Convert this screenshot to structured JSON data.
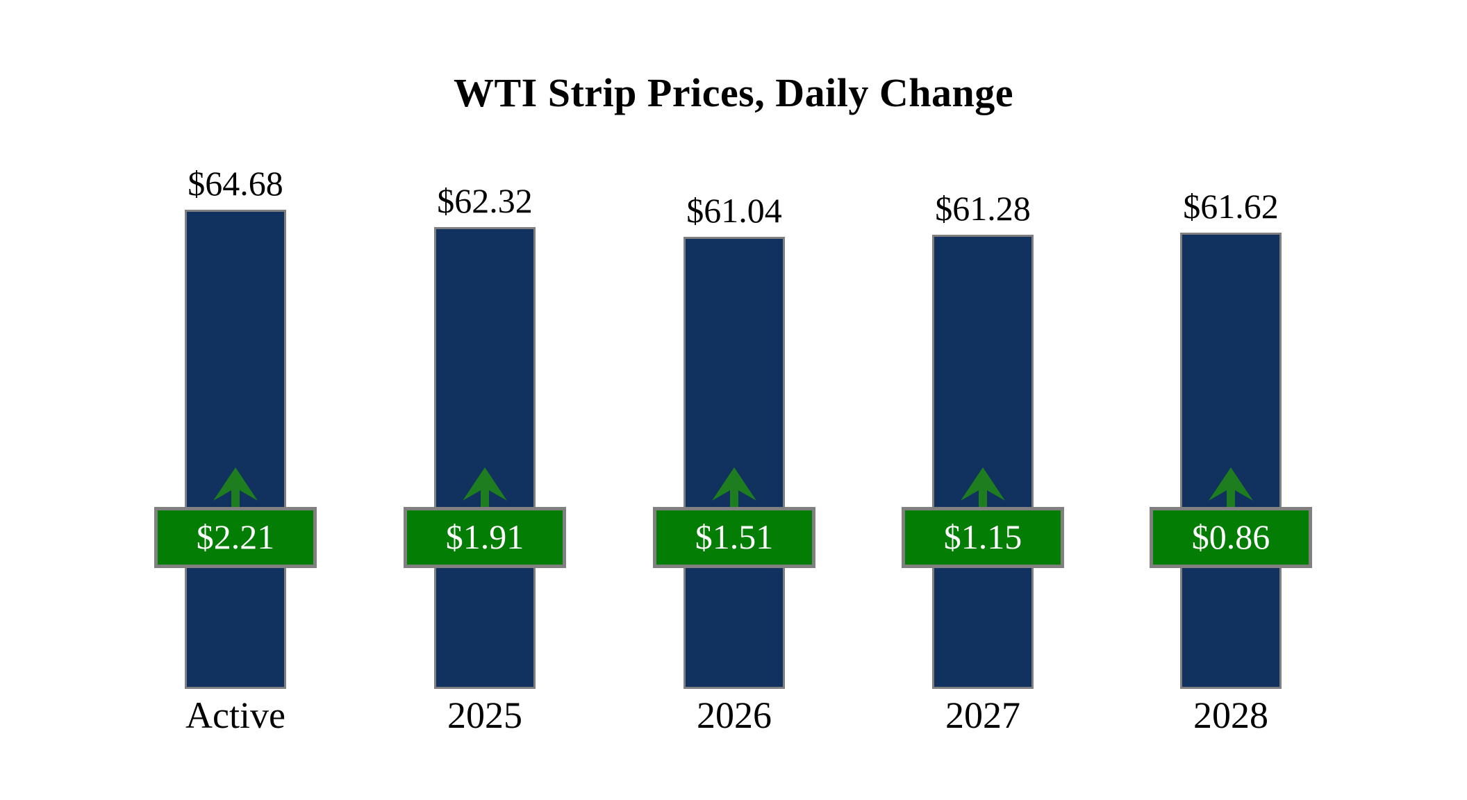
{
  "title": "WTI Strip Prices, Daily Change",
  "chart_data": {
    "type": "bar",
    "title": "WTI Strip Prices, Daily Change",
    "categories": [
      "Active",
      "2025",
      "2026",
      "2027",
      "2028"
    ],
    "series": [
      {
        "name": "strip_price",
        "values": [
          64.68,
          62.32,
          61.04,
          61.28,
          61.62
        ],
        "labels": [
          "$64.68",
          "$62.32",
          "$61.04",
          "$61.28",
          "$61.62"
        ],
        "label_position": "above-bar"
      },
      {
        "name": "daily_change",
        "values": [
          2.21,
          1.91,
          1.51,
          1.15,
          0.86
        ],
        "labels": [
          "$2.21",
          "$1.91",
          "$1.51",
          "$1.15",
          "$0.86"
        ],
        "direction": "up",
        "label_position": "badge-overlay"
      }
    ],
    "xlabel": "",
    "ylabel": "",
    "ylim": [
      0,
      64.68
    ],
    "grid": false,
    "legend": "none",
    "axes_visible": false,
    "colors": {
      "bar": "#11315F",
      "bar_border": "#808080",
      "badge": "#047D04",
      "badge_border": "#808080",
      "badge_text": "#FFFFFF",
      "arrow": "#1E7D1E",
      "text": "#000000",
      "background": "#FFFFFF"
    }
  }
}
